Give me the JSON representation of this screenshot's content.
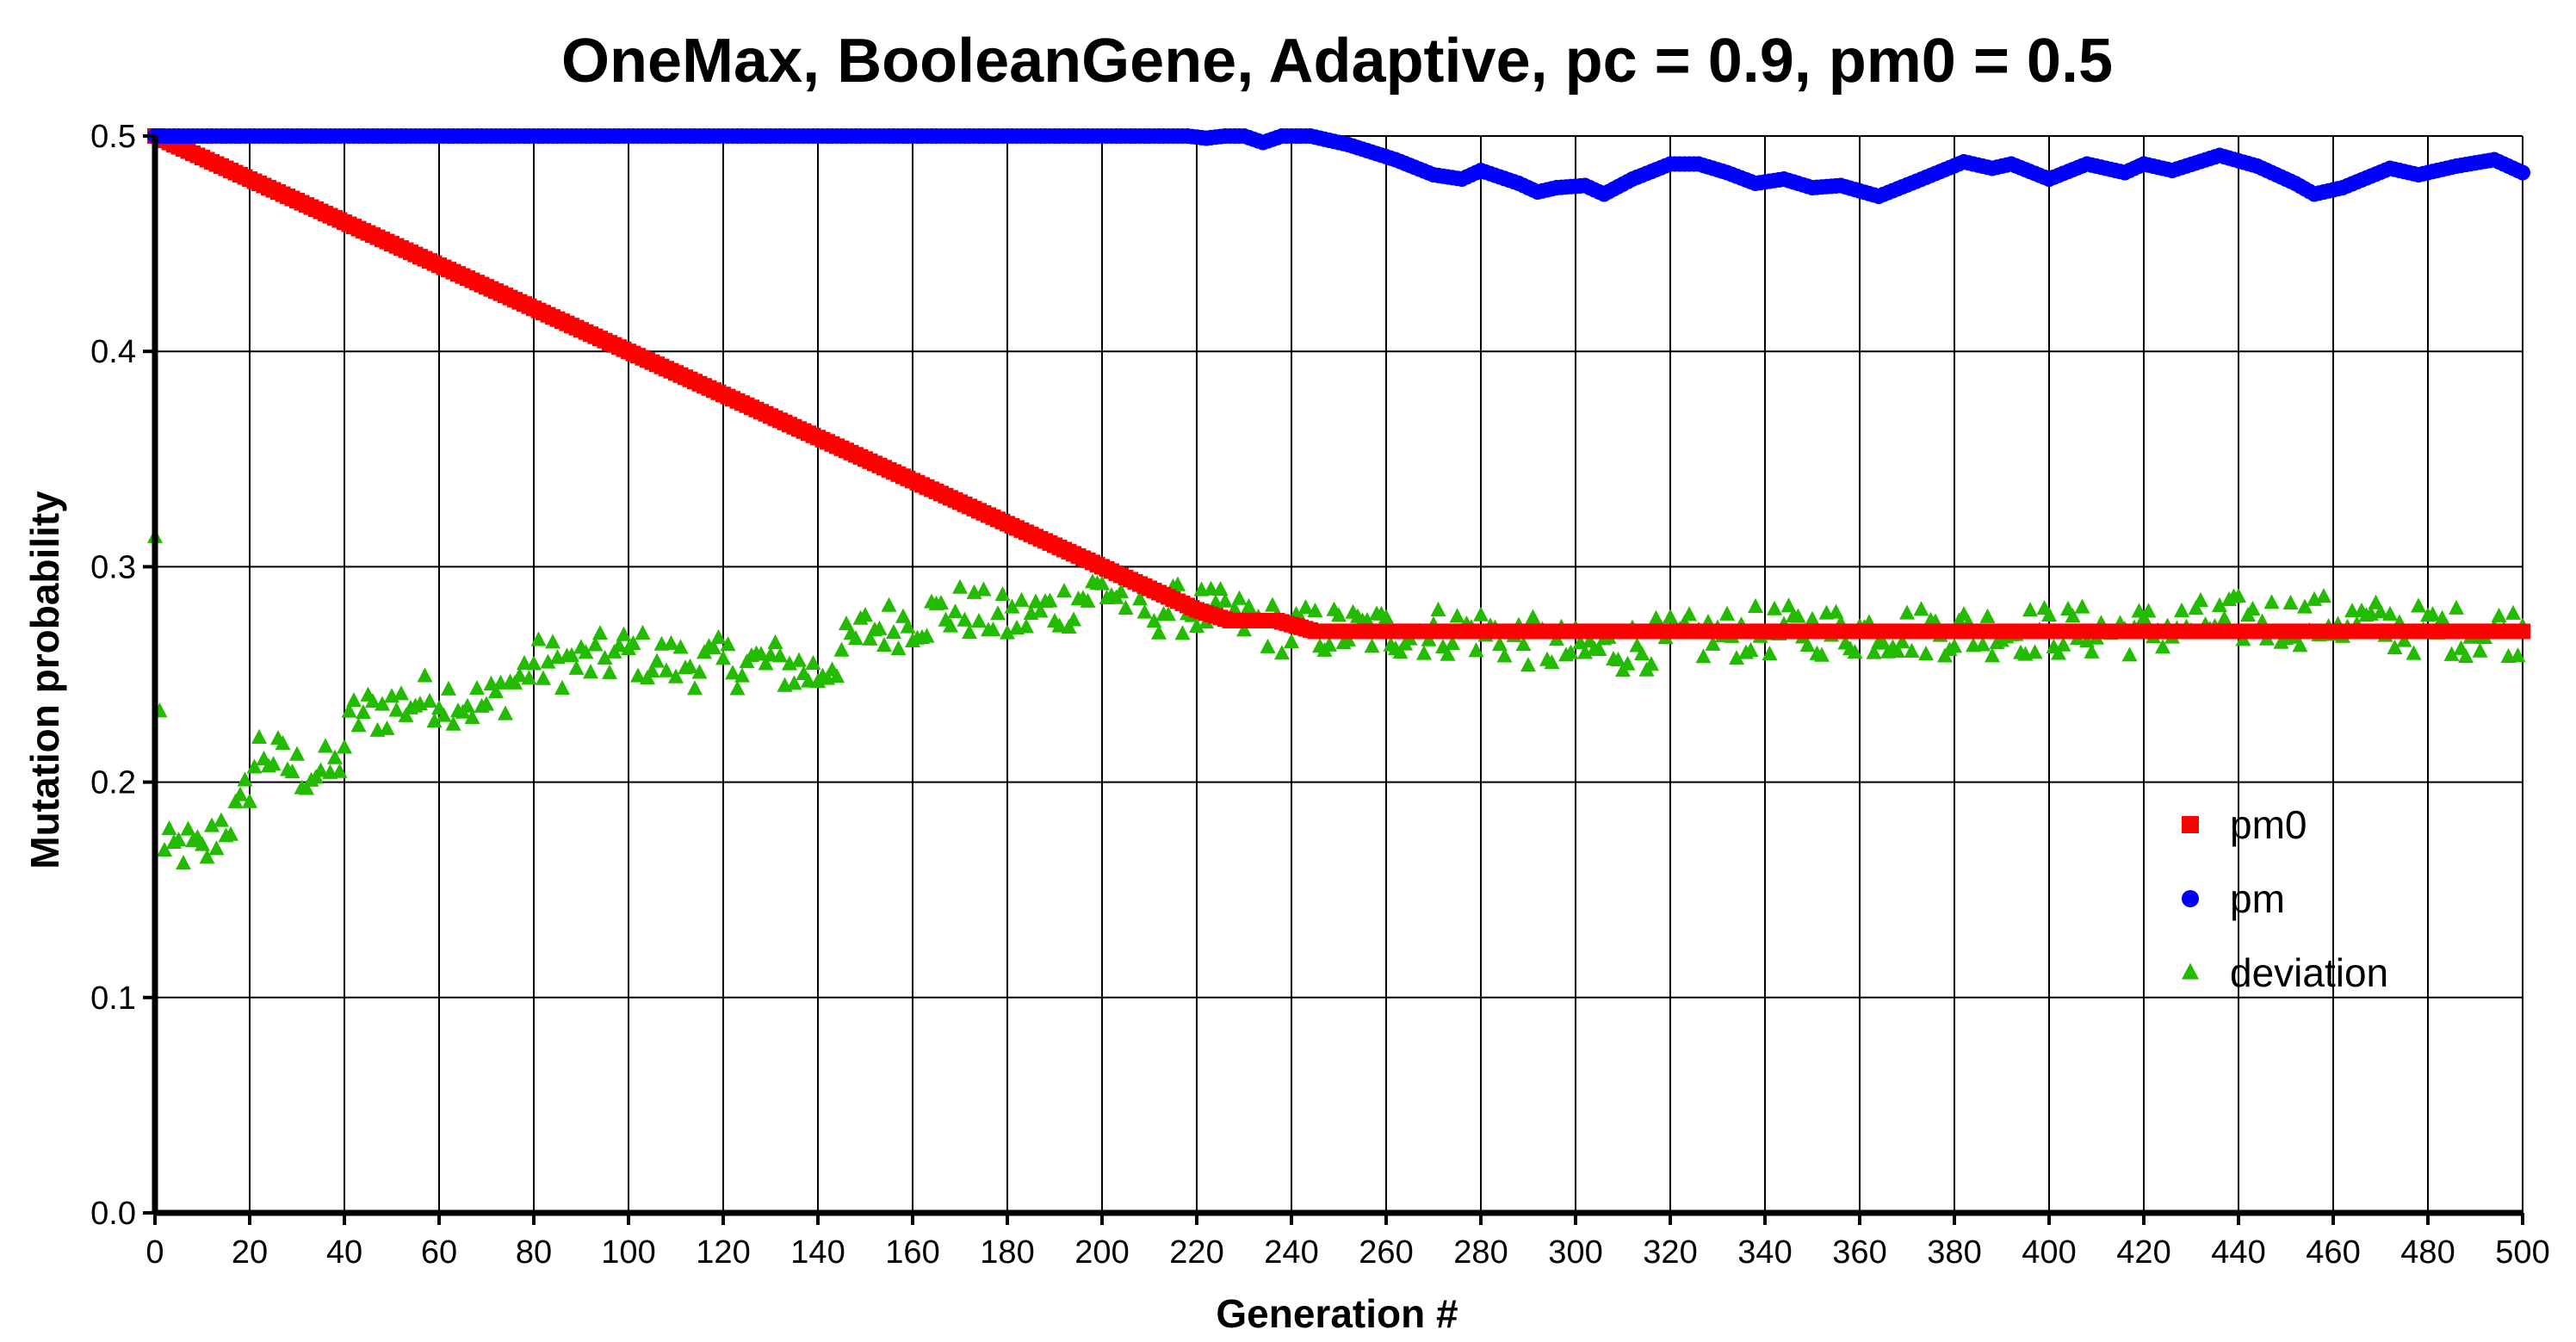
{
  "chart_data": {
    "type": "scatter",
    "title": "OneMax, BooleanGene, Adaptive, pc = 0.9, pm0 = 0.5",
    "xlabel": "Generation #",
    "ylabel": "Mutation probability",
    "xlim": [
      0,
      500
    ],
    "ylim": [
      0,
      0.5
    ],
    "x_ticks": [
      0,
      20,
      40,
      60,
      80,
      100,
      120,
      140,
      160,
      180,
      200,
      220,
      240,
      260,
      280,
      300,
      320,
      340,
      360,
      380,
      400,
      420,
      440,
      460,
      480,
      500
    ],
    "y_ticks": [
      0.0,
      0.1,
      0.2,
      0.3,
      0.4,
      0.5
    ],
    "y_tick_labels": [
      "0.0",
      "0.1",
      "0.2",
      "0.3",
      "0.4",
      "0.5"
    ],
    "grid": true,
    "legend_position": "right",
    "series": [
      {
        "name": "pm0",
        "marker": "square",
        "color": "#ff0000",
        "anchors": [
          [
            0,
            0.5
          ],
          [
            220,
            0.28
          ],
          [
            227,
            0.275
          ],
          [
            237,
            0.275
          ],
          [
            245,
            0.27
          ],
          [
            500,
            0.27
          ]
        ]
      },
      {
        "name": "pm",
        "marker": "circle",
        "color": "#0000ff",
        "anchors": [
          [
            0,
            0.5
          ],
          [
            218,
            0.5
          ],
          [
            222,
            0.499
          ],
          [
            226,
            0.5
          ],
          [
            230,
            0.5
          ],
          [
            234,
            0.497
          ],
          [
            238,
            0.5
          ],
          [
            244,
            0.5
          ],
          [
            252,
            0.496
          ],
          [
            262,
            0.489
          ],
          [
            270,
            0.482
          ],
          [
            276,
            0.48
          ],
          [
            280,
            0.484
          ],
          [
            288,
            0.478
          ],
          [
            292,
            0.474
          ],
          [
            296,
            0.476
          ],
          [
            302,
            0.477
          ],
          [
            306,
            0.473
          ],
          [
            312,
            0.48
          ],
          [
            320,
            0.487
          ],
          [
            326,
            0.487
          ],
          [
            332,
            0.483
          ],
          [
            338,
            0.478
          ],
          [
            344,
            0.48
          ],
          [
            350,
            0.476
          ],
          [
            356,
            0.477
          ],
          [
            364,
            0.472
          ],
          [
            372,
            0.479
          ],
          [
            382,
            0.488
          ],
          [
            388,
            0.485
          ],
          [
            392,
            0.487
          ],
          [
            400,
            0.48
          ],
          [
            408,
            0.487
          ],
          [
            416,
            0.483
          ],
          [
            420,
            0.487
          ],
          [
            426,
            0.484
          ],
          [
            436,
            0.491
          ],
          [
            444,
            0.486
          ],
          [
            452,
            0.478
          ],
          [
            456,
            0.473
          ],
          [
            462,
            0.476
          ],
          [
            472,
            0.485
          ],
          [
            478,
            0.482
          ],
          [
            486,
            0.486
          ],
          [
            494,
            0.489
          ],
          [
            500,
            0.483
          ]
        ]
      },
      {
        "name": "deviation",
        "marker": "triangle",
        "color": "#22bb00",
        "anchors": [
          [
            0,
            0.31
          ],
          [
            2,
            0.165
          ],
          [
            6,
            0.17
          ],
          [
            10,
            0.165
          ],
          [
            14,
            0.18
          ],
          [
            18,
            0.185
          ],
          [
            22,
            0.215
          ],
          [
            30,
            0.205
          ],
          [
            38,
            0.205
          ],
          [
            42,
            0.23
          ],
          [
            50,
            0.235
          ],
          [
            60,
            0.24
          ],
          [
            70,
            0.235
          ],
          [
            80,
            0.255
          ],
          [
            90,
            0.255
          ],
          [
            100,
            0.26
          ],
          [
            110,
            0.255
          ],
          [
            120,
            0.255
          ],
          [
            130,
            0.255
          ],
          [
            140,
            0.25
          ],
          [
            150,
            0.27
          ],
          [
            160,
            0.275
          ],
          [
            170,
            0.28
          ],
          [
            180,
            0.275
          ],
          [
            190,
            0.28
          ],
          [
            200,
            0.29
          ],
          [
            210,
            0.28
          ],
          [
            220,
            0.28
          ],
          [
            240,
            0.27
          ],
          [
            260,
            0.27
          ],
          [
            280,
            0.27
          ],
          [
            300,
            0.26
          ],
          [
            320,
            0.265
          ],
          [
            340,
            0.27
          ],
          [
            360,
            0.27
          ],
          [
            380,
            0.27
          ],
          [
            400,
            0.27
          ],
          [
            420,
            0.27
          ],
          [
            440,
            0.275
          ],
          [
            460,
            0.275
          ],
          [
            480,
            0.27
          ],
          [
            500,
            0.27
          ]
        ],
        "jitter": 0.012
      }
    ]
  }
}
